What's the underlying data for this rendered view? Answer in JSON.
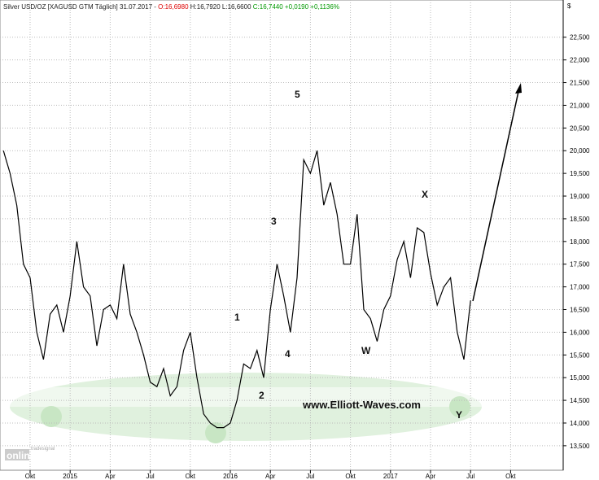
{
  "chart_data": {
    "type": "line",
    "header": {
      "instrument": "Silver USD/OZ [XAGUSD GTM  Täglich] 31.07.2017 -",
      "open": "O:16,6980",
      "high": "H:16,7920",
      "low": "L:16,6600",
      "close": "C:16,7440",
      "change": "+0,0190",
      "change_pct": "+0,1136%"
    },
    "y_unit": "$",
    "logo": [
      "tradesignal",
      "online"
    ],
    "watermark": "www.Elliott-Waves.com",
    "annotations": [
      "5",
      "3",
      "1",
      "2",
      "4",
      "W",
      "X",
      "Y"
    ],
    "categories": [
      null,
      null,
      null,
      null,
      "Okt",
      null,
      null,
      null,
      null,
      null,
      "2015",
      null,
      null,
      null,
      null,
      null,
      "Apr",
      null,
      null,
      null,
      null,
      null,
      "Jul",
      null,
      null,
      null,
      null,
      null,
      "Okt",
      null,
      null,
      null,
      null,
      null,
      "2016",
      null,
      null,
      null,
      null,
      null,
      "Apr",
      null,
      null,
      null,
      null,
      null,
      "Jul",
      null,
      null,
      null,
      null,
      null,
      "Okt",
      null,
      null,
      null,
      null,
      null,
      "2017",
      null,
      null,
      null,
      null,
      null,
      "Apr",
      null,
      null,
      null,
      null,
      null,
      "Jul",
      null,
      null,
      null,
      null,
      null,
      "Okt"
    ],
    "series": [
      {
        "name": "Silver",
        "color": "#000000",
        "values": [
          20000,
          19500,
          18800,
          17500,
          17200,
          16000,
          15400,
          16400,
          16600,
          16000,
          16800,
          18000,
          17000,
          16800,
          15700,
          16500,
          16600,
          16300,
          17500,
          16400,
          16000,
          15500,
          14900,
          14800,
          15200,
          14600,
          14800,
          15600,
          16000,
          15000,
          14200,
          14000,
          13900,
          13900,
          14000,
          14500,
          15300,
          15200,
          15600,
          15000,
          16500,
          17500,
          16800,
          16000,
          17200,
          19800,
          19500,
          20000,
          18800,
          19300,
          18600,
          17500,
          17500,
          18600,
          16500,
          16300,
          15800,
          16500,
          16800,
          17600,
          18000,
          17200,
          18300,
          18200,
          17300,
          16600,
          17000,
          17200,
          16000,
          15400,
          16700,
          null,
          null,
          null,
          null,
          null,
          null
        ]
      }
    ],
    "ylim": [
      12960,
      23320
    ],
    "yticks": [
      {
        "value": 13500,
        "label": "13,500"
      },
      {
        "value": 14000,
        "label": "14,000"
      },
      {
        "value": 14500,
        "label": "14,500"
      },
      {
        "value": 15000,
        "label": "15,000"
      },
      {
        "value": 15500,
        "label": "15,500"
      },
      {
        "value": 16000,
        "label": "16,000"
      },
      {
        "value": 16500,
        "label": "16,500"
      },
      {
        "value": 17000,
        "label": "17,000"
      },
      {
        "value": 17500,
        "label": "17,500"
      },
      {
        "value": 18000,
        "label": "18,000"
      },
      {
        "value": 18500,
        "label": "18,500"
      },
      {
        "value": 19000,
        "label": "19,000"
      },
      {
        "value": 19500,
        "label": "19,500"
      },
      {
        "value": 20000,
        "label": "20,000"
      },
      {
        "value": 20500,
        "label": "20,500"
      },
      {
        "value": 21000,
        "label": "21,000"
      },
      {
        "value": 21500,
        "label": "21,500"
      },
      {
        "value": 22000,
        "label": "22,000"
      },
      {
        "value": 22500,
        "label": "22,500"
      }
    ]
  }
}
